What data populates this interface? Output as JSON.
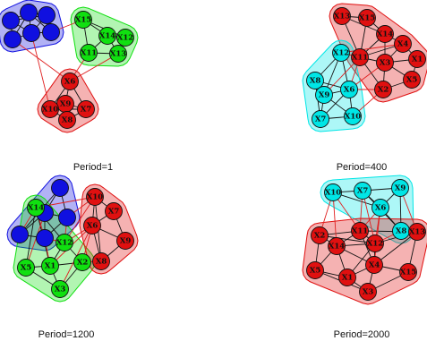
{
  "colors": {
    "blue": "#1010e0",
    "green": "#10e010",
    "red": "#e01010",
    "cyan": "#00e6e6",
    "edge_black": "#111111",
    "edge_red": "#e02020"
  },
  "panels": [
    {
      "id": "p1",
      "caption": "Period=1",
      "nodes": [
        {
          "label": "",
          "color": "blue"
        },
        {
          "label": "",
          "color": "blue"
        },
        {
          "label": "",
          "color": "blue"
        },
        {
          "label": "",
          "color": "blue"
        },
        {
          "label": "",
          "color": "blue"
        },
        {
          "label": "",
          "color": "blue"
        },
        {
          "label": "X15",
          "color": "green"
        },
        {
          "label": "X14",
          "color": "green"
        },
        {
          "label": "X12",
          "color": "green"
        },
        {
          "label": "X11",
          "color": "green"
        },
        {
          "label": "X13",
          "color": "green"
        },
        {
          "label": "X6",
          "color": "red"
        },
        {
          "label": "X9",
          "color": "red"
        },
        {
          "label": "X10",
          "color": "red"
        },
        {
          "label": "X7",
          "color": "red"
        },
        {
          "label": "X8",
          "color": "red"
        }
      ],
      "groups": [
        {
          "color": "blue",
          "members": [
            0,
            1,
            2,
            3,
            4,
            5
          ]
        },
        {
          "color": "green",
          "members": [
            6,
            7,
            8,
            9,
            10
          ]
        },
        {
          "color": "red",
          "members": [
            11,
            12,
            13,
            14,
            15
          ]
        }
      ]
    },
    {
      "id": "p2",
      "caption": "Period=400",
      "nodes": [
        {
          "label": "X13",
          "color": "red"
        },
        {
          "label": "X15",
          "color": "red"
        },
        {
          "label": "X14",
          "color": "red"
        },
        {
          "label": "X4",
          "color": "red"
        },
        {
          "label": "X11",
          "color": "red"
        },
        {
          "label": "X3",
          "color": "red"
        },
        {
          "label": "X1",
          "color": "red"
        },
        {
          "label": "X5",
          "color": "red"
        },
        {
          "label": "X2",
          "color": "red"
        },
        {
          "label": "X12",
          "color": "cyan"
        },
        {
          "label": "X8",
          "color": "cyan"
        },
        {
          "label": "X9",
          "color": "cyan"
        },
        {
          "label": "X6",
          "color": "cyan"
        },
        {
          "label": "X7",
          "color": "cyan"
        },
        {
          "label": "X10",
          "color": "cyan"
        }
      ],
      "groups": [
        {
          "color": "red",
          "members": [
            0,
            1,
            2,
            3,
            4,
            5,
            6,
            7,
            8
          ]
        },
        {
          "color": "cyan",
          "members": [
            9,
            10,
            11,
            12,
            13,
            14
          ]
        }
      ]
    },
    {
      "id": "p3",
      "caption": "Period=1200",
      "nodes": [
        {
          "label": "",
          "color": "blue"
        },
        {
          "label": "",
          "color": "blue"
        },
        {
          "label": "",
          "color": "blue"
        },
        {
          "label": "",
          "color": "blue"
        },
        {
          "label": "",
          "color": "blue"
        },
        {
          "label": "X14",
          "color": "green"
        },
        {
          "label": "X12",
          "color": "green"
        },
        {
          "label": "X5",
          "color": "green"
        },
        {
          "label": "X1",
          "color": "green"
        },
        {
          "label": "X2",
          "color": "green"
        },
        {
          "label": "X3",
          "color": "green"
        },
        {
          "label": "X10",
          "color": "red"
        },
        {
          "label": "X7",
          "color": "red"
        },
        {
          "label": "X6",
          "color": "red"
        },
        {
          "label": "X9",
          "color": "red"
        },
        {
          "label": "X8",
          "color": "red"
        }
      ],
      "groups": [
        {
          "color": "blue",
          "members": [
            0,
            1,
            2,
            3,
            4
          ]
        },
        {
          "color": "green",
          "members": [
            5,
            6,
            7,
            8,
            9,
            10
          ]
        },
        {
          "color": "red",
          "members": [
            11,
            12,
            13,
            14,
            15
          ]
        }
      ]
    },
    {
      "id": "p4",
      "caption": "Period=2000",
      "nodes": [
        {
          "label": "X10",
          "color": "cyan"
        },
        {
          "label": "X7",
          "color": "cyan"
        },
        {
          "label": "X9",
          "color": "cyan"
        },
        {
          "label": "X6",
          "color": "cyan"
        },
        {
          "label": "X8",
          "color": "cyan"
        },
        {
          "label": "X2",
          "color": "red"
        },
        {
          "label": "X11",
          "color": "red"
        },
        {
          "label": "X14",
          "color": "red"
        },
        {
          "label": "X12",
          "color": "red"
        },
        {
          "label": "X13",
          "color": "red"
        },
        {
          "label": "X5",
          "color": "red"
        },
        {
          "label": "X4",
          "color": "red"
        },
        {
          "label": "X1",
          "color": "red"
        },
        {
          "label": "X15",
          "color": "red"
        },
        {
          "label": "X3",
          "color": "red"
        }
      ],
      "groups": [
        {
          "color": "cyan",
          "members": [
            0,
            1,
            2,
            3,
            4
          ]
        },
        {
          "color": "red",
          "members": [
            5,
            6,
            7,
            8,
            9,
            10,
            11,
            12,
            13,
            14
          ]
        }
      ]
    }
  ]
}
